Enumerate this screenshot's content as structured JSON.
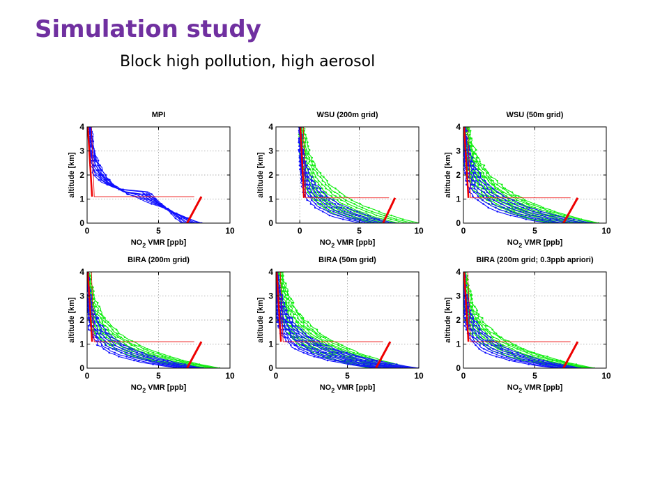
{
  "slide": {
    "title": "Simulation study",
    "subtitle": "Block high pollution, high aerosol"
  },
  "colors": {
    "title": "#7030a0",
    "blue_series": "#1010ff",
    "green_series": "#10ee10",
    "red_series": "#ee0000"
  },
  "chart_data": [
    {
      "type": "line",
      "title": "MPI",
      "xlabel_main": "NO",
      "xlabel_sub": "2",
      "xlabel_rest": " VMR [ppb]",
      "ylabel": "altitude [km]",
      "xlim": [
        0,
        10
      ],
      "ylim": [
        0,
        4
      ],
      "xticks": [
        0,
        5,
        10
      ],
      "yticks": [
        0,
        1,
        2,
        3,
        4
      ],
      "grid": true,
      "profile_family": {
        "blue": {
          "count": 9,
          "surface_min": 6.6,
          "surface_max": 8.0,
          "block_top": 1.4,
          "upper_scale": 0.6
        },
        "green": null
      },
      "apriori_red": {
        "surface": 7.5,
        "block_top": 1.1,
        "top": 4.0,
        "width": 0.3
      }
    },
    {
      "type": "line",
      "title": "WSU (200m grid)",
      "xlabel_main": "NO",
      "xlabel_sub": "2",
      "xlabel_rest": " VMR [ppb]",
      "ylabel": "altitude [km]",
      "xlim": [
        -2,
        10
      ],
      "ylim": [
        0,
        4
      ],
      "xticks": [
        0,
        5,
        10
      ],
      "yticks": [
        0,
        1,
        2,
        3,
        4
      ],
      "grid": true,
      "profile_family": {
        "blue": {
          "count": 7,
          "surface_min": 5.0,
          "surface_max": 8.0,
          "decay": 0.7
        },
        "green": {
          "count": 9,
          "surface_min": 5.5,
          "surface_max": 10.0,
          "decay": 0.9
        }
      },
      "apriori_red": {
        "surface": 7.5,
        "block_top": 1.05,
        "top": 4.0,
        "width": 0.3
      }
    },
    {
      "type": "line",
      "title": "WSU (50m grid)",
      "xlabel_main": "NO",
      "xlabel_sub": "2",
      "xlabel_rest": " VMR [ppb]",
      "ylabel": "altitude [km]",
      "xlim": [
        0,
        10
      ],
      "ylim": [
        0,
        4
      ],
      "xticks": [
        0,
        5,
        10
      ],
      "yticks": [
        0,
        1,
        2,
        3,
        4
      ],
      "grid": true,
      "profile_family": {
        "blue": {
          "count": 7,
          "surface_min": 6.0,
          "surface_max": 9.0,
          "decay": 0.75
        },
        "green": {
          "count": 12,
          "surface_min": 6.0,
          "surface_max": 9.5,
          "decay": 0.95
        }
      },
      "apriori_red": {
        "surface": 7.5,
        "block_top": 1.05,
        "top": 4.0,
        "width": 0.3
      }
    },
    {
      "type": "line",
      "title": "BIRA (200m grid)",
      "xlabel_main": "NO",
      "xlabel_sub": "2",
      "xlabel_rest": " VMR [ppb]",
      "ylabel": "altitude [km]",
      "xlim": [
        0,
        10
      ],
      "ylim": [
        0,
        4
      ],
      "xticks": [
        0,
        5,
        10
      ],
      "yticks": [
        0,
        1,
        2,
        3,
        4
      ],
      "grid": true,
      "profile_family": {
        "blue": {
          "count": 7,
          "surface_min": 6.5,
          "surface_max": 8.2,
          "decay": 0.65
        },
        "green": {
          "count": 9,
          "surface_min": 7.5,
          "surface_max": 9.2,
          "decay": 0.8
        }
      },
      "apriori_red": {
        "surface": 7.5,
        "block_top": 1.1,
        "top": 4.0,
        "width": 0.3
      }
    },
    {
      "type": "line",
      "title": "BIRA (50m grid)",
      "xlabel_main": "NO",
      "xlabel_sub": "2",
      "xlabel_rest": " VMR [ppb]",
      "ylabel": "altitude [km]",
      "xlim": [
        0,
        10
      ],
      "ylim": [
        0,
        4
      ],
      "xticks": [
        0,
        5,
        10
      ],
      "yticks": [
        0,
        1,
        2,
        3,
        4
      ],
      "grid": true,
      "profile_family": {
        "blue": {
          "count": 10,
          "surface_min": 7.0,
          "surface_max": 10.0,
          "decay": 0.7
        },
        "green": {
          "count": 12,
          "surface_min": 6.5,
          "surface_max": 9.5,
          "decay": 1.0
        }
      },
      "apriori_red": {
        "surface": 7.5,
        "block_top": 1.1,
        "top": 4.0,
        "width": 0.3
      }
    },
    {
      "type": "line",
      "title": "BIRA (200m grid; 0.3ppb apriori)",
      "xlabel_main": "NO",
      "xlabel_sub": "2",
      "xlabel_rest": " VMR [ppb]",
      "ylabel": "altitude [km]",
      "xlim": [
        0,
        10
      ],
      "ylim": [
        0,
        4
      ],
      "xticks": [
        0,
        5,
        10
      ],
      "yticks": [
        0,
        1,
        2,
        3,
        4
      ],
      "grid": true,
      "profile_family": {
        "blue": {
          "count": 7,
          "surface_min": 6.5,
          "surface_max": 8.2,
          "decay": 0.65
        },
        "green": {
          "count": 9,
          "surface_min": 7.5,
          "surface_max": 9.2,
          "decay": 0.8
        }
      },
      "apriori_red": {
        "surface": 7.5,
        "block_top": 1.1,
        "top": 4.0,
        "width": 0.3
      }
    }
  ]
}
